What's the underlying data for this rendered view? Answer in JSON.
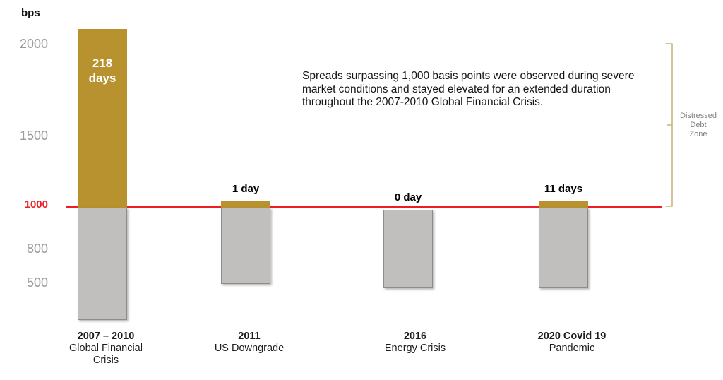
{
  "chart_data": {
    "type": "bar",
    "title": "",
    "ylabel": "bps",
    "grid": true,
    "y_axis_nonlinear": true,
    "yticks": [
      {
        "label": "2000",
        "bps": 2000,
        "emphasis": false
      },
      {
        "label": "1500",
        "bps": 1500,
        "emphasis": false
      },
      {
        "label": "1000",
        "bps": 1000,
        "emphasis": true
      },
      {
        "label": "800",
        "bps": 800,
        "emphasis": false
      },
      {
        "label": "500",
        "bps": 500,
        "emphasis": false
      }
    ],
    "threshold_bps": 1000,
    "categories": [
      "2007 – 2010 Global Financial Crisis",
      "2011 US Downgrade",
      "2016 Energy Crisis",
      "2020 Covid 19 Pandemic"
    ],
    "bars": [
      {
        "category_lines": [
          "2007 – 2010",
          "Global Financial",
          "Crisis"
        ],
        "days_label": "218 days",
        "days_above_threshold": 218,
        "peak_bps": 2080,
        "low_bps": 170,
        "label_inside": true
      },
      {
        "category_lines": [
          "2011",
          "US Downgrade"
        ],
        "days_label": "1 day",
        "days_above_threshold": 1,
        "peak_bps": 1035,
        "low_bps": 490,
        "label_inside": false
      },
      {
        "category_lines": [
          "2016",
          "Energy Crisis"
        ],
        "days_label": "0 day",
        "days_above_threshold": 0,
        "peak_bps": 985,
        "low_bps": 450,
        "label_inside": false
      },
      {
        "category_lines": [
          "2020 Covid 19",
          "Pandemic"
        ],
        "days_label": "11 days",
        "days_above_threshold": 11,
        "peak_bps": 1035,
        "low_bps": 450,
        "label_inside": false
      }
    ],
    "annotation_lines": [
      "Spreads surpassing 1,000 basis points were observed during severe",
      "market conditions and stayed elevated for an extended duration",
      "throughout the 2007-2010 Global Financial Crisis."
    ],
    "zone_label_lines": [
      "Distressed",
      "Debt",
      "Zone"
    ],
    "colors": {
      "above_threshold": "#b7922f",
      "below_threshold": "#c1bfbd",
      "threshold_line": "#ee1c25",
      "threshold_text": "#ee1c25",
      "gridline": "#a7a7a7",
      "tick_text": "#9b9b9b",
      "bracket": "#c8b57e",
      "zone_text": "#7f7f7f"
    }
  }
}
